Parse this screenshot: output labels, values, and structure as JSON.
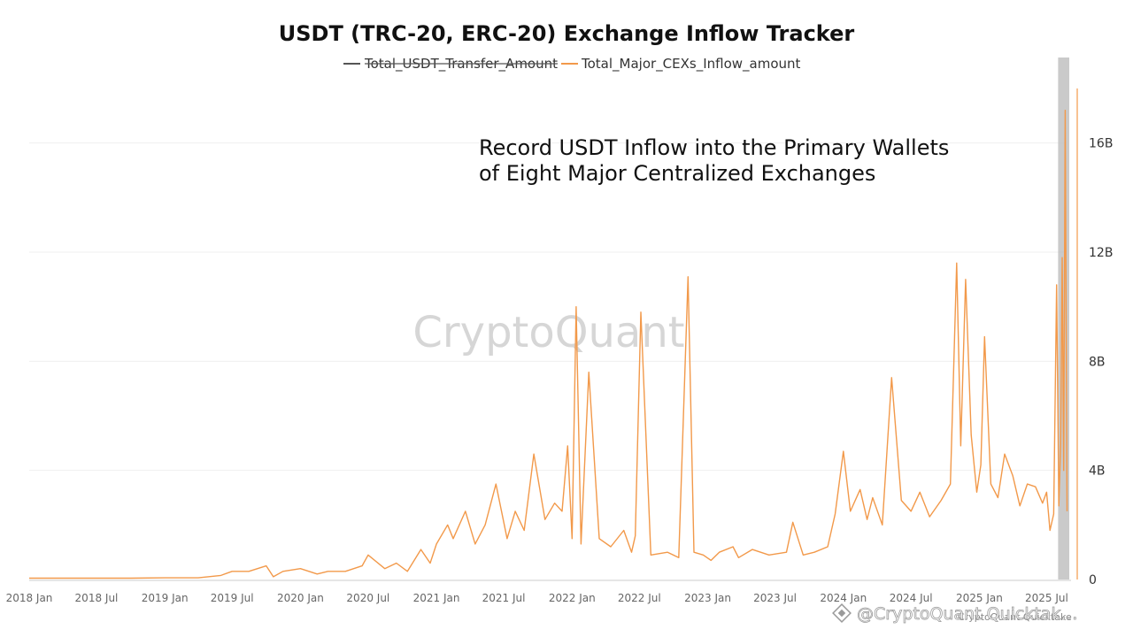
{
  "chart_data": {
    "type": "line",
    "title": "USDT (TRC-20, ERC-20) Exchange Inflow Tracker",
    "legend": {
      "placement": "top-center",
      "entries": [
        {
          "name": "Total_USDT_Transfer_Amount",
          "color": "#555555",
          "hidden": true
        },
        {
          "name": "Total_Major_CEXs_Inflow_amount",
          "color": "#f2994a",
          "hidden": false
        }
      ]
    },
    "annotation": [
      "Record USDT Inflow into the Primary Wallets",
      "of Eight Major Centralized Exchanges"
    ],
    "watermark": "CryptoQuant",
    "credit": "@CryptoQuant Quicktak…",
    "credit_small": "CryptoQuant Quicktake",
    "x_ticks": [
      "2018 Jan",
      "2018 Jul",
      "2019 Jan",
      "2019 Jul",
      "2020 Jan",
      "2020 Jul",
      "2021 Jan",
      "2021 Jul",
      "2022 Jan",
      "2022 Jul",
      "2023 Jan",
      "2023 Jul",
      "2024 Jan",
      "2024 Jul",
      "2025 Jan",
      "2025 Jul"
    ],
    "y_ticks": [
      "0",
      "4B",
      "8B",
      "12B",
      "16B"
    ],
    "y_axis": {
      "position": "right",
      "range": [
        0,
        18000000000
      ]
    },
    "x_range": [
      "2018-01-01",
      "2025-08-31"
    ],
    "grid": true,
    "highlight": {
      "from": "2025-08-01",
      "to": "2025-08-31",
      "color": "#bdbdbd"
    },
    "colors": {
      "series": "#f2994a",
      "grid": "#efefef"
    },
    "series": [
      {
        "name": "Total_Major_CEXs_Inflow_amount",
        "x": [
          "2018-01-01",
          "2018-04-01",
          "2018-07-01",
          "2018-10-01",
          "2019-01-01",
          "2019-04-01",
          "2019-06-01",
          "2019-07-01",
          "2019-08-15",
          "2019-10-01",
          "2019-10-20",
          "2019-11-15",
          "2020-01-01",
          "2020-02-15",
          "2020-03-15",
          "2020-05-01",
          "2020-06-15",
          "2020-07-01",
          "2020-08-15",
          "2020-09-15",
          "2020-10-15",
          "2020-11-20",
          "2020-12-15",
          "2021-01-01",
          "2021-01-31",
          "2021-02-15",
          "2021-03-20",
          "2021-04-15",
          "2021-05-12",
          "2021-06-10",
          "2021-07-10",
          "2021-08-01",
          "2021-08-25",
          "2021-09-20",
          "2021-10-20",
          "2021-11-15",
          "2021-12-05",
          "2021-12-20",
          "2022-01-01",
          "2022-01-12",
          "2022-01-25",
          "2022-02-15",
          "2022-03-15",
          "2022-04-15",
          "2022-05-20",
          "2022-06-10",
          "2022-06-20",
          "2022-07-05",
          "2022-08-01",
          "2022-09-15",
          "2022-10-15",
          "2022-11-09",
          "2022-11-25",
          "2022-12-20",
          "2023-01-10",
          "2023-02-01",
          "2023-03-10",
          "2023-03-25",
          "2023-05-01",
          "2023-06-15",
          "2023-08-01",
          "2023-08-18",
          "2023-09-15",
          "2023-10-15",
          "2023-11-20",
          "2023-12-10",
          "2024-01-01",
          "2024-01-20",
          "2024-02-15",
          "2024-03-05",
          "2024-03-20",
          "2024-04-15",
          "2024-05-10",
          "2024-06-05",
          "2024-07-01",
          "2024-07-25",
          "2024-08-20",
          "2024-09-20",
          "2024-10-15",
          "2024-11-01",
          "2024-11-12",
          "2024-11-25",
          "2024-12-10",
          "2024-12-25",
          "2025-01-05",
          "2025-01-15",
          "2025-02-01",
          "2025-02-20",
          "2025-03-10",
          "2025-04-01",
          "2025-04-20",
          "2025-05-10",
          "2025-06-01",
          "2025-06-20",
          "2025-07-01",
          "2025-07-10",
          "2025-07-20",
          "2025-07-28",
          "2025-08-03",
          "2025-08-08",
          "2025-08-12",
          "2025-08-16",
          "2025-08-20",
          "2025-08-25"
        ],
        "values": [
          0.05,
          0.05,
          0.05,
          0.05,
          0.06,
          0.06,
          0.15,
          0.3,
          0.3,
          0.5,
          0.1,
          0.3,
          0.4,
          0.2,
          0.3,
          0.3,
          0.5,
          0.9,
          0.4,
          0.6,
          0.3,
          1.1,
          0.6,
          1.3,
          2.0,
          1.5,
          2.5,
          1.3,
          2.0,
          3.5,
          1.5,
          2.5,
          1.8,
          4.6,
          2.2,
          2.8,
          2.5,
          4.9,
          1.5,
          10.0,
          1.3,
          7.6,
          1.5,
          1.2,
          1.8,
          1.0,
          1.6,
          9.8,
          0.9,
          1.0,
          0.8,
          11.1,
          1.0,
          0.9,
          0.7,
          1.0,
          1.2,
          0.8,
          1.1,
          0.9,
          1.0,
          2.1,
          0.9,
          1.0,
          1.2,
          2.4,
          4.7,
          2.5,
          3.3,
          2.2,
          3.0,
          2.0,
          7.4,
          2.9,
          2.5,
          3.2,
          2.3,
          2.9,
          3.5,
          11.6,
          4.9,
          11.0,
          5.3,
          3.2,
          4.2,
          8.9,
          3.5,
          3.0,
          4.6,
          3.8,
          2.7,
          3.5,
          3.4,
          2.8,
          3.2,
          1.8,
          2.4,
          10.8,
          2.7,
          5.0,
          11.8,
          4.0,
          17.2,
          2.5
        ]
      }
    ]
  }
}
